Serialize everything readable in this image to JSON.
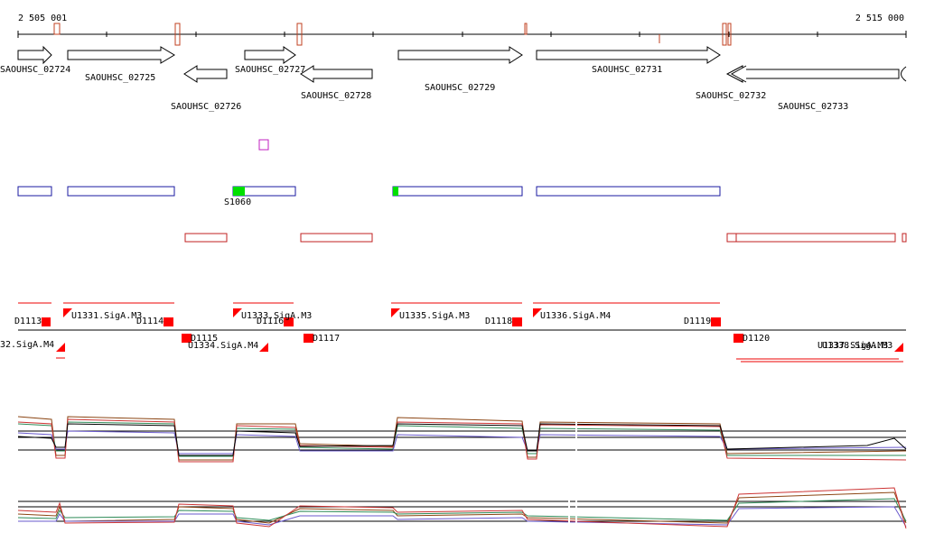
{
  "axis": {
    "start": "2 505 001",
    "end": "2 515 000"
  },
  "genes": [
    "SAOUHSC_02724",
    "SAOUHSC_02725",
    "SAOUHSC_02726",
    "SAOUHSC_02727",
    "SAOUHSC_02728",
    "SAOUHSC_02729",
    "SAOUHSC_02731",
    "SAOUHSC_02732",
    "SAOUHSC_02733"
  ],
  "segments": [
    "S1060"
  ],
  "features": [
    "D1113",
    "U1331.SigA.M3",
    "D1114",
    "32.SigA.M4",
    "D1115",
    "U1334.SigA.M4",
    "U1333.SigA.M3",
    "D1116",
    "D1117",
    "U1335.SigA.M3",
    "D1118",
    "U1336.SigA.M4",
    "D1119",
    "D1120",
    "U1337.SigA.M3",
    "U1338.SigA.M3"
  ]
}
